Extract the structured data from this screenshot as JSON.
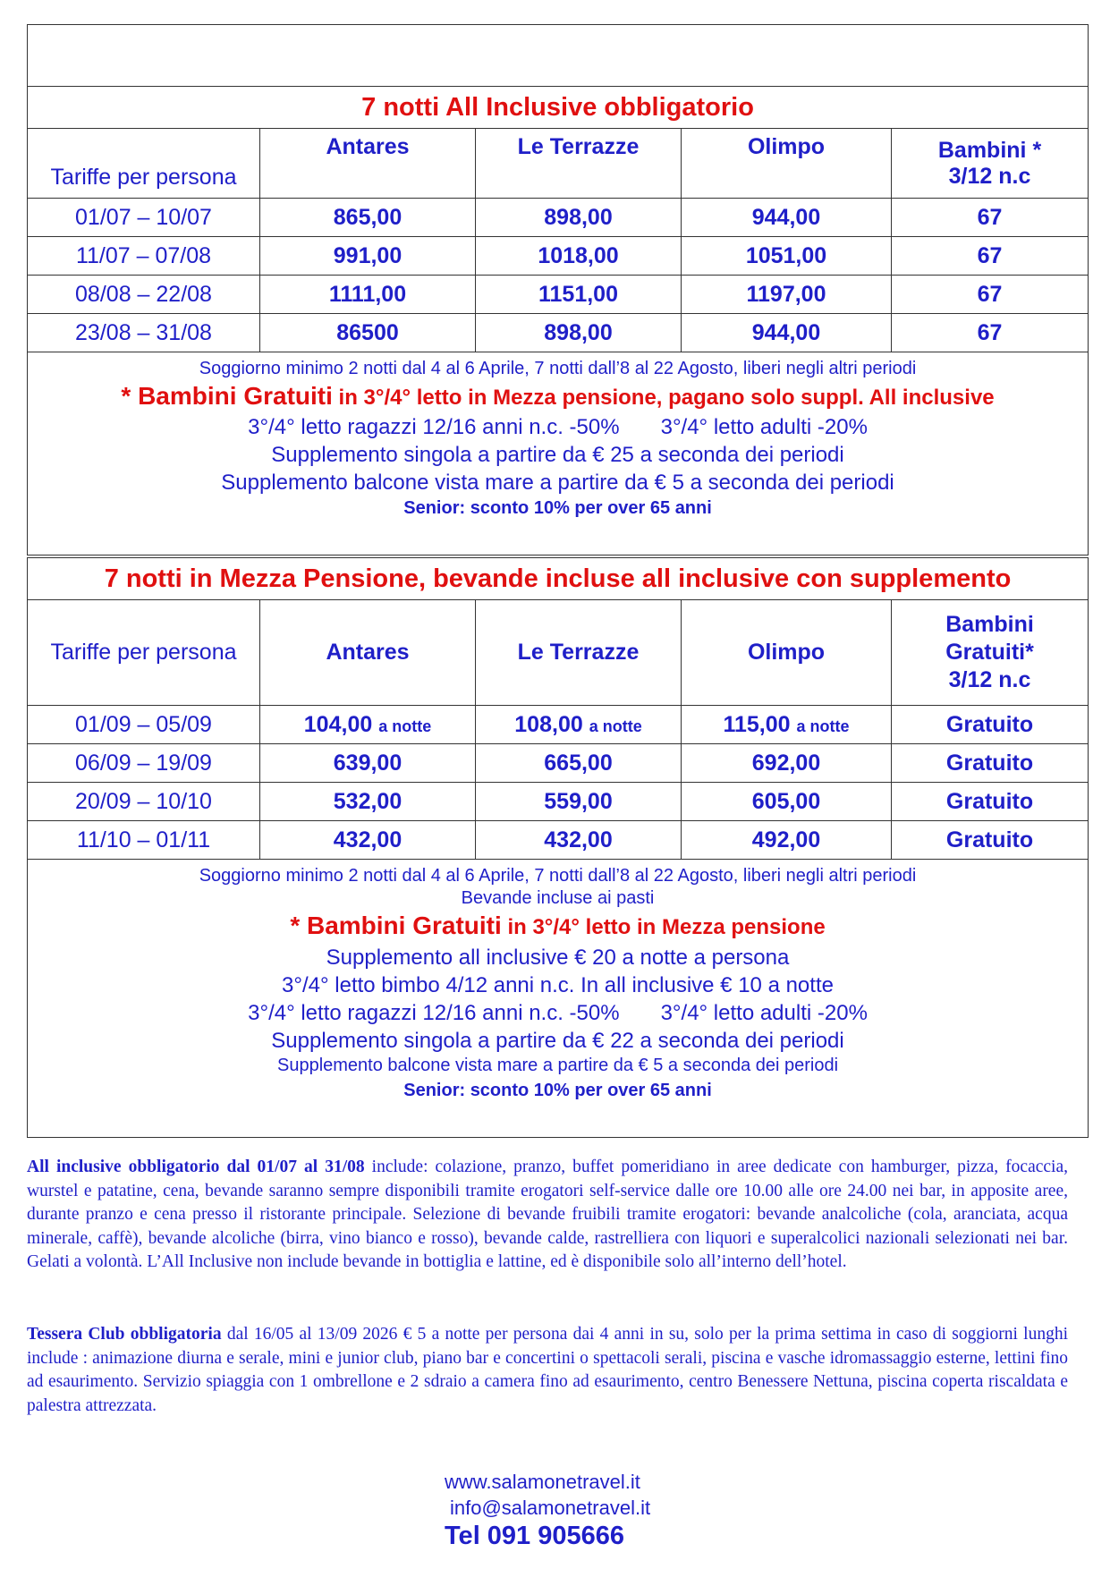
{
  "table1": {
    "title": "7 notti  All Inclusive  obbligatorio",
    "headers": [
      "Tariffe per persona",
      "Antares",
      "Le Terrazze",
      "Olimpo",
      "Bambini *",
      "3/12  n.c"
    ],
    "rows": [
      [
        "01/07 – 10/07",
        "865,00",
        "898,00",
        "944,00",
        "67"
      ],
      [
        "11/07 – 07/08",
        "991,00",
        "1018,00",
        "1051,00",
        "67"
      ],
      [
        "08/08 – 22/08",
        "1111,00",
        "1151,00",
        "1197,00",
        "67"
      ],
      [
        "23/08 – 31/08",
        "86500",
        "898,00",
        "944,00",
        "67"
      ]
    ],
    "notes": {
      "min_stay": "Soggiorno minimo 2 notti dal 4 al 6 Aprile, 7 notti dall’8 al 22 Agosto, liberi negli altri periodi",
      "kids_a": "* Bambini Gratuiti",
      "kids_b": " in 3°/4° letto in Mezza pensione, pagano solo suppl. All inclusive",
      "line3a": "3°/4° letto ragazzi 12/16 anni n.c. -50%",
      "line3b": "3°/4° letto adulti -20%",
      "single": "Supplemento singola a partire da € 25 a seconda dei periodi",
      "balcony": "Supplemento balcone vista mare a partire da € 5 a seconda dei periodi",
      "senior": "Senior: sconto 10% per over 65 anni"
    }
  },
  "table2": {
    "title": "7 notti in Mezza Pensione, bevande incluse  all inclusive con supplemento",
    "headers": [
      "Tariffe per persona",
      "Antares",
      "Le Terrazze",
      "Olimpo",
      "Bambini",
      "Gratuiti*",
      "3/12  n.c"
    ],
    "per_night": "a notte",
    "rows": [
      [
        "01/09 – 05/09",
        "104,00",
        "108,00",
        "115,00",
        "Gratuito"
      ],
      [
        "06/09 – 19/09",
        "639,00",
        "665,00",
        "692,00",
        "Gratuito"
      ],
      [
        "20/09 – 10/10",
        "532,00",
        "559,00",
        "605,00",
        "Gratuito"
      ],
      [
        "11/10 – 01/11",
        "432,00",
        "432,00",
        "492,00",
        "Gratuito"
      ]
    ],
    "notes": {
      "min_stay": "Soggiorno minimo 2 notti dal 4 al 6 Aprile, 7 notti dall’8 al 22 Agosto, liberi negli altri periodi",
      "drinks": "Bevande incluse ai pasti",
      "kids_a": "* Bambini Gratuiti",
      "kids_b": " in 3°/4° letto in Mezza pensione",
      "ai_supp": "Supplemento all inclusive € 20 a notte a persona",
      "child_bed": "3°/4° letto bimbo 4/12 anni n.c. In all inclusive € 10 a notte",
      "line3a": "3°/4° letto ragazzi 12/16 anni n.c. -50%",
      "line3b": "3°/4° letto adulti -20%",
      "single": "Supplemento singola a partire da € 22 a seconda dei periodi",
      "balcony": "Supplemento balcone vista mare a partire da € 5 a seconda dei periodi",
      "senior": "Senior: sconto 10% per over 65 anni"
    }
  },
  "para1": {
    "bold": "All inclusive obbligatorio dal 01/07 al 31/08",
    "text": " include: colazione, pranzo, buffet pomeridiano in aree dedicate con hamburger, pizza, focaccia, wurstel e patatine, cena, bevande saranno sempre disponibili tramite erogatori self-service dalle ore 10.00 alle ore 24.00 nei bar, in apposite aree, durante pranzo e cena presso il ristorante principale. Selezione di bevande fruibili tramite erogatori: bevande analcoliche (cola, aranciata, acqua minerale, caffè), bevande alcoliche (birra, vino bianco e rosso), bevande calde, rastrelliera con liquori e superalcolici nazionali selezionati nei bar. Gelati a volontà. L’All Inclusive non include bevande in bottiglia e lattine, ed è disponibile solo all’interno dell’hotel."
  },
  "para2": {
    "bold": "Tessera Club obbligatoria",
    "text": " dal 16/05 al 13/09  2026  € 5 a notte per persona dai 4 anni in su, solo per la prima settima in caso di soggiorni lunghi include : animazione diurna e serale, mini e junior club, piano bar e concertini o spettacoli serali, piscina e vasche idromassaggio esterne, lettini fino ad esaurimento. Servizio spiaggia con 1 ombrellone e 2 sdraio a camera fino ad esaurimento, centro Benessere Nettuna, piscina coperta riscaldata e palestra attrezzata."
  },
  "contact": {
    "website": "www.salamonetravel.it",
    "email": "info@salamonetravel.it",
    "phone": "Tel 091 905666"
  },
  "colors": {
    "text": "#1f1fc8",
    "accent": "#e01010"
  }
}
